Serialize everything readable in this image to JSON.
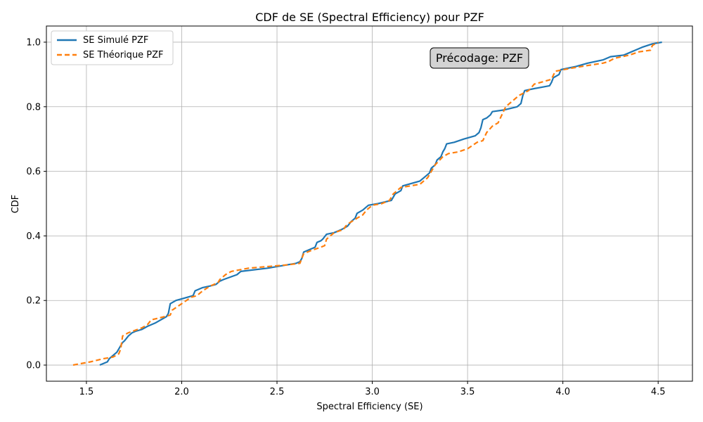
{
  "chart_data": {
    "type": "line",
    "title": "CDF de SE (Spectral Efficiency) pour PZF",
    "xlabel": "Spectral Efficiency (SE)",
    "ylabel": "CDF",
    "xlim": [
      1.29,
      4.68
    ],
    "ylim": [
      -0.05,
      1.05
    ],
    "xticks": [
      1.5,
      2.0,
      2.5,
      3.0,
      3.5,
      4.0,
      4.5
    ],
    "yticks": [
      0.0,
      0.2,
      0.4,
      0.6,
      0.8,
      1.0
    ],
    "xtick_labels": [
      "1.5",
      "2.0",
      "2.5",
      "3.0",
      "3.5",
      "4.0",
      "4.5"
    ],
    "ytick_labels": [
      "0.0",
      "0.2",
      "0.4",
      "0.6",
      "0.8",
      "1.0"
    ],
    "grid": true,
    "legend_position": "top-left",
    "annotation": "Précodage: PZF",
    "series": [
      {
        "name": "SE Simulé PZF",
        "color": "#1f77b4",
        "style": "solid",
        "x": [
          1.57,
          1.61,
          1.62,
          1.66,
          1.68,
          1.69,
          1.7,
          1.72,
          1.74,
          1.76,
          1.79,
          1.82,
          1.86,
          1.92,
          1.93,
          1.94,
          1.97,
          2.0,
          2.06,
          2.07,
          2.11,
          2.15,
          2.18,
          2.2,
          2.22,
          2.29,
          2.31,
          2.45,
          2.55,
          2.6,
          2.62,
          2.63,
          2.64,
          2.7,
          2.71,
          2.73,
          2.74,
          2.76,
          2.8,
          2.84,
          2.87,
          2.89,
          2.91,
          2.92,
          2.95,
          2.98,
          3.03,
          3.1,
          3.12,
          3.15,
          3.16,
          3.25,
          3.27,
          3.3,
          3.31,
          3.33,
          3.34,
          3.36,
          3.37,
          3.38,
          3.39,
          3.43,
          3.48,
          3.54,
          3.56,
          3.57,
          3.58,
          3.6,
          3.62,
          3.63,
          3.69,
          3.76,
          3.78,
          3.79,
          3.8,
          3.84,
          3.93,
          3.94,
          3.95,
          3.98,
          3.99,
          4.07,
          4.13,
          4.21,
          4.25,
          4.32,
          4.38,
          4.42,
          4.47,
          4.52
        ],
        "y": [
          0.0,
          0.01,
          0.02,
          0.04,
          0.06,
          0.07,
          0.075,
          0.09,
          0.1,
          0.105,
          0.11,
          0.12,
          0.13,
          0.15,
          0.16,
          0.19,
          0.2,
          0.205,
          0.215,
          0.23,
          0.24,
          0.245,
          0.25,
          0.26,
          0.265,
          0.28,
          0.29,
          0.3,
          0.31,
          0.315,
          0.32,
          0.33,
          0.35,
          0.365,
          0.38,
          0.385,
          0.39,
          0.405,
          0.41,
          0.42,
          0.43,
          0.445,
          0.455,
          0.47,
          0.48,
          0.495,
          0.5,
          0.51,
          0.53,
          0.54,
          0.555,
          0.57,
          0.58,
          0.595,
          0.61,
          0.62,
          0.635,
          0.645,
          0.66,
          0.67,
          0.685,
          0.69,
          0.7,
          0.71,
          0.72,
          0.735,
          0.76,
          0.765,
          0.775,
          0.785,
          0.79,
          0.8,
          0.81,
          0.835,
          0.85,
          0.855,
          0.865,
          0.875,
          0.89,
          0.9,
          0.915,
          0.925,
          0.935,
          0.945,
          0.955,
          0.96,
          0.975,
          0.985,
          0.995,
          1.0
        ]
      },
      {
        "name": "SE Théorique PZF",
        "color": "#ff7f0e",
        "style": "dashed",
        "x": [
          1.43,
          1.52,
          1.59,
          1.64,
          1.67,
          1.68,
          1.69,
          1.72,
          1.79,
          1.82,
          1.84,
          1.91,
          1.94,
          1.95,
          2.05,
          2.08,
          2.11,
          2.15,
          2.19,
          2.2,
          2.23,
          2.26,
          2.35,
          2.45,
          2.55,
          2.62,
          2.63,
          2.64,
          2.68,
          2.73,
          2.75,
          2.76,
          2.8,
          2.85,
          2.86,
          2.88,
          2.92,
          2.95,
          2.97,
          3.0,
          3.05,
          3.09,
          3.11,
          3.15,
          3.2,
          3.25,
          3.29,
          3.33,
          3.37,
          3.4,
          3.45,
          3.5,
          3.55,
          3.58,
          3.6,
          3.63,
          3.66,
          3.7,
          3.77,
          3.82,
          3.85,
          3.94,
          3.96,
          4.05,
          4.1,
          4.21,
          4.24,
          4.27,
          4.35,
          4.4,
          4.46,
          4.47,
          4.5
        ],
        "y": [
          0.0,
          0.01,
          0.02,
          0.025,
          0.035,
          0.05,
          0.09,
          0.1,
          0.115,
          0.125,
          0.14,
          0.15,
          0.155,
          0.17,
          0.21,
          0.215,
          0.23,
          0.245,
          0.255,
          0.265,
          0.28,
          0.29,
          0.3,
          0.305,
          0.31,
          0.315,
          0.33,
          0.345,
          0.355,
          0.365,
          0.37,
          0.39,
          0.41,
          0.42,
          0.43,
          0.44,
          0.455,
          0.465,
          0.48,
          0.495,
          0.5,
          0.51,
          0.53,
          0.55,
          0.555,
          0.56,
          0.58,
          0.62,
          0.645,
          0.655,
          0.66,
          0.67,
          0.69,
          0.695,
          0.72,
          0.74,
          0.75,
          0.8,
          0.835,
          0.85,
          0.87,
          0.885,
          0.91,
          0.92,
          0.925,
          0.935,
          0.94,
          0.95,
          0.96,
          0.97,
          0.975,
          0.99,
          1.0
        ]
      }
    ]
  }
}
